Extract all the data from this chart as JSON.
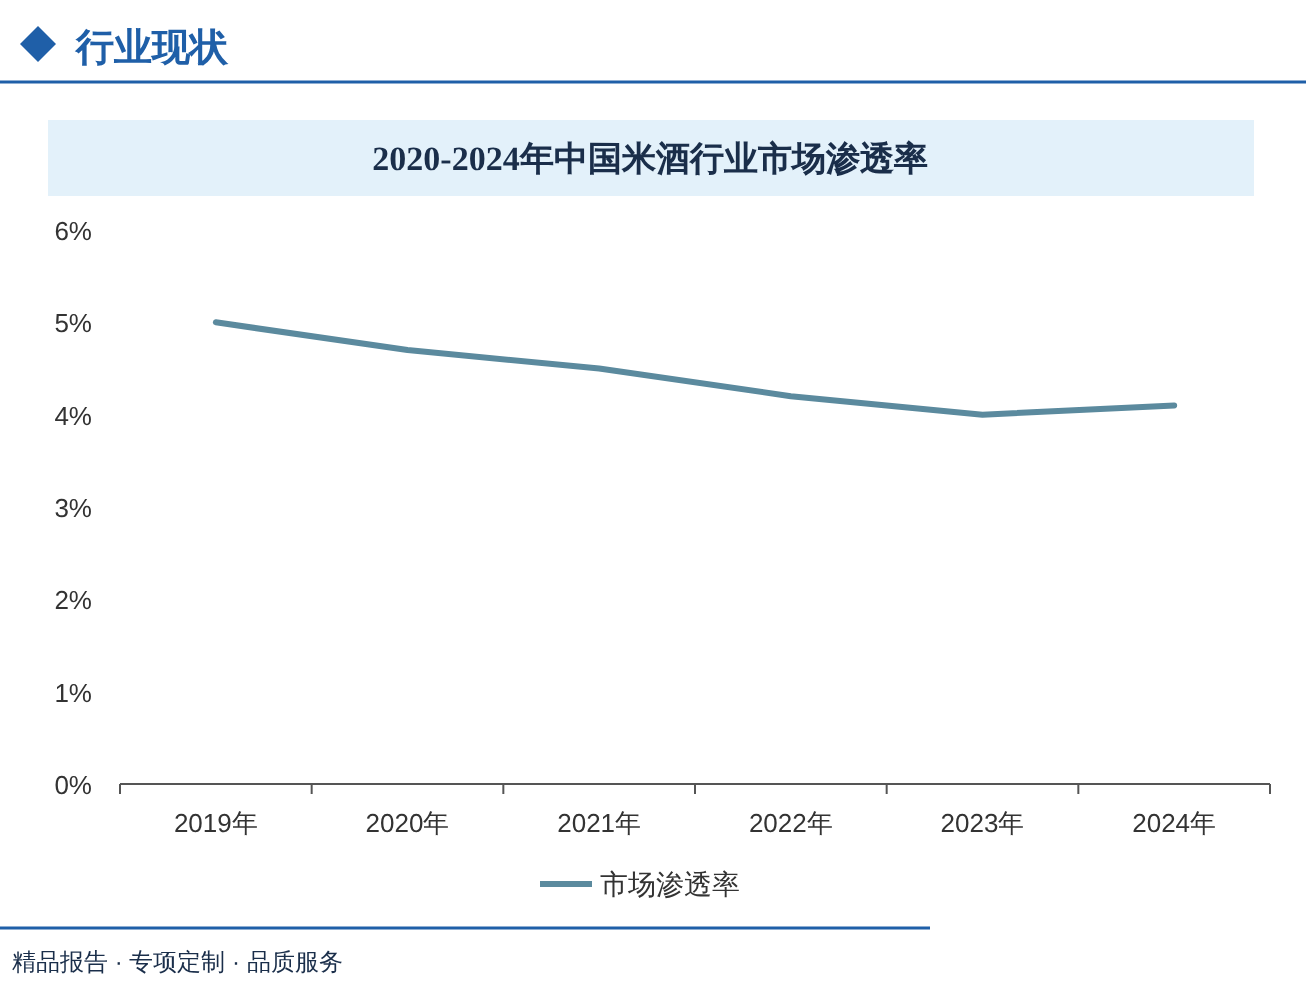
{
  "chart_data": {
    "type": "line",
    "title": "2020-2024年中国米酒行业市场渗透率",
    "categories": [
      "2019年",
      "2020年",
      "2021年",
      "2022年",
      "2023年",
      "2024年"
    ],
    "series": [
      {
        "name": "市场渗透率",
        "color": "#5b8a9e",
        "values": [
          5.0,
          4.7,
          4.5,
          4.2,
          4.0,
          4.1
        ]
      }
    ],
    "ylim": [
      0,
      6
    ],
    "yticks": [
      {
        "value": 0,
        "label": "0%"
      },
      {
        "value": 1,
        "label": "1%"
      },
      {
        "value": 2,
        "label": "2%"
      },
      {
        "value": 3,
        "label": "3%"
      },
      {
        "value": 4,
        "label": "4%"
      },
      {
        "value": 5,
        "label": "5%"
      },
      {
        "value": 6,
        "label": "6%"
      }
    ],
    "grid": false,
    "legend": "bottom",
    "marker": "none",
    "line_style": "solid",
    "annotations": [
      "行业现状",
      "精品报告 · 专项定制 · 品质服务"
    ]
  }
}
